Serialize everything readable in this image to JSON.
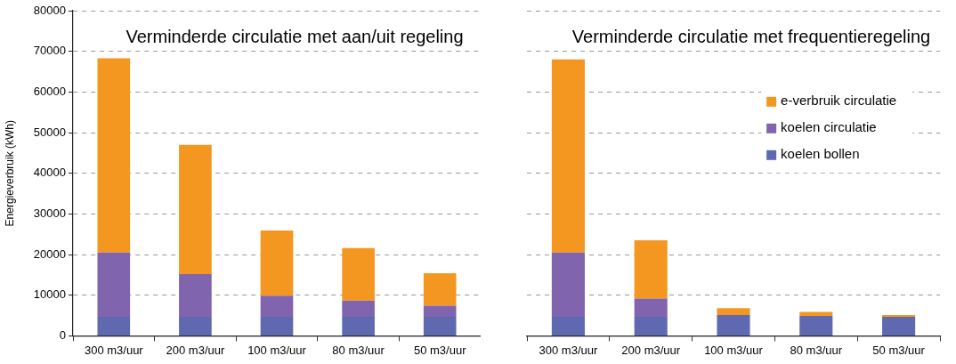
{
  "chart_data": [
    {
      "type": "bar",
      "title": "Verminderde circulatie met aan/uit regeling",
      "ylabel": "Energieverbruik (kWh)",
      "categories": [
        "300 m3/uur",
        "200 m3/uur",
        "100 m3/uur",
        "80 m3/uur",
        "50 m3/uur"
      ],
      "stacked": true,
      "series": [
        {
          "color": "#5f69b0",
          "values": [
            4700,
            4700,
            4700,
            4700,
            4700
          ]
        },
        {
          "color": "#8064ae",
          "values": [
            15800,
            10500,
            5200,
            4000,
            2700
          ]
        },
        {
          "color": "#f39720",
          "values": [
            47800,
            31800,
            16000,
            12900,
            8000
          ]
        }
      ],
      "ylim": [
        0,
        80000
      ],
      "yticks": [
        0,
        10000,
        20000,
        30000,
        40000,
        50000,
        60000,
        70000,
        80000
      ],
      "grid": "y",
      "legend": false
    },
    {
      "type": "bar",
      "title": "Verminderde circulatie met frequentieregeling",
      "categories": [
        "300 m3/uur",
        "200 m3/uur",
        "100 m3/uur",
        "80 m3/uur",
        "50 m3/uur"
      ],
      "stacked": true,
      "series": [
        {
          "name": "koelen bollen",
          "color": "#5f69b0",
          "values": [
            4700,
            4700,
            5100,
            4900,
            4700
          ]
        },
        {
          "name": "koelen circulatie",
          "color": "#8064ae",
          "values": [
            15800,
            4500,
            0,
            0,
            0
          ]
        },
        {
          "name": "e-verbruik circulatie",
          "color": "#f39720",
          "values": [
            47500,
            14300,
            1700,
            1000,
            400
          ]
        }
      ],
      "ylim": [
        0,
        80000
      ],
      "yticks": [
        0,
        10000,
        20000,
        30000,
        40000,
        50000,
        60000,
        70000,
        80000
      ],
      "grid": "y",
      "legend": "right",
      "tick_labels": "x"
    }
  ]
}
